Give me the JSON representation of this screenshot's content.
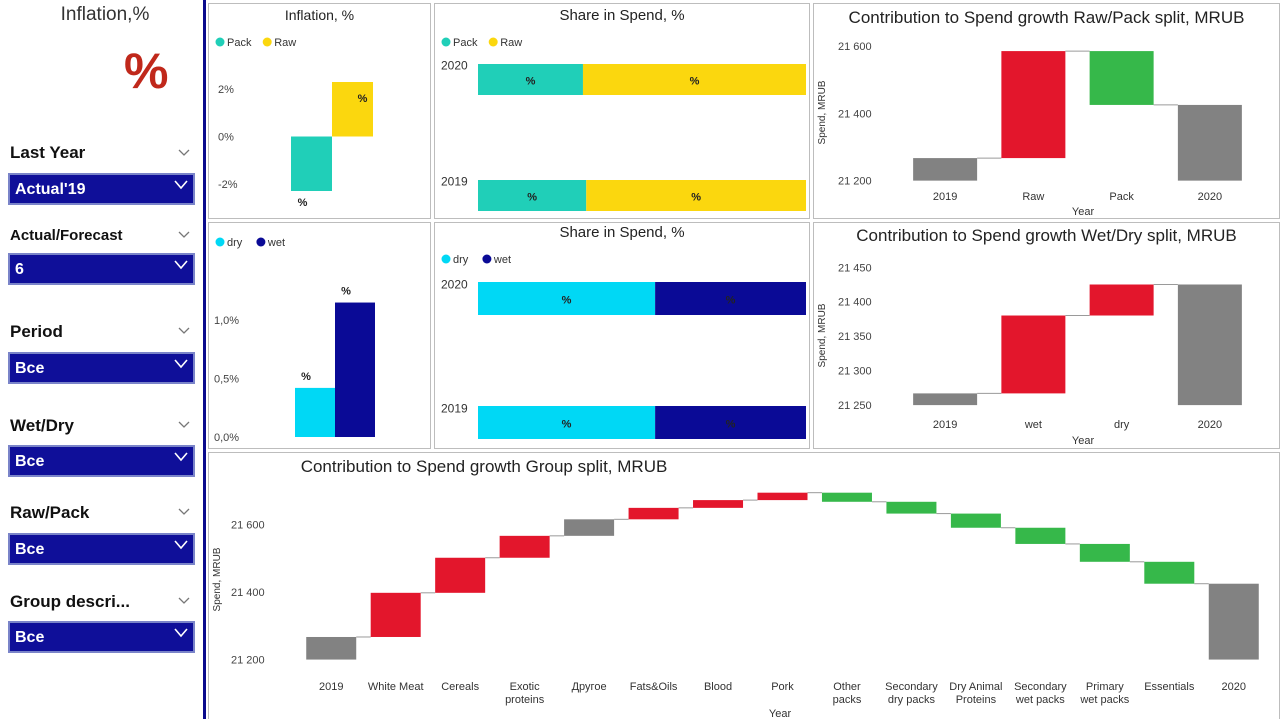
{
  "sidebar": {
    "title": "Inflation,%",
    "big_value": "%",
    "filters": [
      {
        "label": "Last Year",
        "value": "Actual'19"
      },
      {
        "label": "Actual/Forecast",
        "value": "6"
      },
      {
        "label": "Period",
        "value": "Все"
      },
      {
        "label": "Wet/Dry",
        "value": "Все"
      },
      {
        "label": "Raw/Pack",
        "value": "Все"
      },
      {
        "label": "Group descri...",
        "value": "Все"
      }
    ]
  },
  "colors": {
    "pack": "#20cfb8",
    "raw": "#fbd70e",
    "dry": "#00d8f5",
    "wet": "#0a0a96",
    "increase": "#e3162c",
    "decrease": "#36b84a",
    "total": "#828282",
    "accent": "#0f0f99"
  },
  "panels": {
    "inflation_rawpack": {
      "title": "Inflation, %"
    },
    "share_rawpack": {
      "title": "Share in Spend, %"
    },
    "contrib_rawpack": {
      "title": "Contribution to Spend growth Raw/Pack split, MRUB"
    },
    "inflation_wetdry": {
      "title": ""
    },
    "share_wetdry": {
      "title": "Share in Spend, %"
    },
    "contrib_wetdry": {
      "title": "Contribution to Spend growth Wet/Dry split, MRUB"
    },
    "contrib_group": {
      "title": "Contribution to Spend growth Group split, MRUB"
    }
  },
  "chart_data": [
    {
      "id": "inflation_rawpack",
      "type": "bar",
      "title": "Inflation, %",
      "legend": [
        "Pack",
        "Raw"
      ],
      "legend_position": "top-left",
      "ytick_labels": [
        "2%",
        "0%",
        "-2%"
      ],
      "ytick_values": [
        2,
        0,
        -2
      ],
      "ylim": [
        -2.3,
        2.3
      ],
      "series": [
        {
          "name": "Pack",
          "values": [
            -2.3
          ],
          "label": "%"
        },
        {
          "name": "Raw",
          "values": [
            2.3
          ],
          "label": "%"
        }
      ]
    },
    {
      "id": "share_rawpack",
      "type": "bar",
      "orientation": "horizontal-stacked-100",
      "title": "Share in Spend, %",
      "legend": [
        "Pack",
        "Raw"
      ],
      "legend_position": "top-left",
      "categories": [
        "2020",
        "2019"
      ],
      "series": [
        {
          "name": "Pack",
          "values": [
            32,
            33
          ],
          "labels": [
            "%",
            "%"
          ]
        },
        {
          "name": "Raw",
          "values": [
            68,
            67
          ],
          "labels": [
            "%",
            "%"
          ]
        }
      ]
    },
    {
      "id": "contrib_rawpack",
      "type": "bar",
      "subtype": "waterfall",
      "title": "Contribution to Spend growth Raw/Pack split, MRUB",
      "xlabel": "Year",
      "ylabel": "Spend, MRUB",
      "ytick_labels": [
        "21 600",
        "21 400",
        "21 200"
      ],
      "ytick_values": [
        21600,
        21400,
        21200
      ],
      "ylim": [
        21190,
        21615
      ],
      "categories": [
        "2019",
        "Raw",
        "Pack",
        "2020"
      ],
      "steps": [
        {
          "start": 21200,
          "end": 21267,
          "kind": "total"
        },
        {
          "start": 21267,
          "end": 21585,
          "kind": "increase"
        },
        {
          "start": 21585,
          "end": 21425,
          "kind": "decrease"
        },
        {
          "start": 21200,
          "end": 21425,
          "kind": "total"
        }
      ]
    },
    {
      "id": "inflation_wetdry",
      "type": "bar",
      "legend": [
        "dry",
        "wet"
      ],
      "legend_position": "top-left",
      "ytick_labels": [
        "1,0%",
        "0,5%",
        "0,0%"
      ],
      "ytick_values": [
        1.0,
        0.5,
        0.0
      ],
      "ylim": [
        0,
        1.3
      ],
      "series": [
        {
          "name": "dry",
          "values": [
            0.42
          ],
          "label": "%"
        },
        {
          "name": "wet",
          "values": [
            1.15
          ],
          "label": "%"
        }
      ]
    },
    {
      "id": "share_wetdry",
      "type": "bar",
      "orientation": "horizontal-stacked-100",
      "title": "Share in Spend, %",
      "legend": [
        "dry",
        "wet"
      ],
      "legend_position": "top-left",
      "categories": [
        "2020",
        "2019"
      ],
      "series": [
        {
          "name": "dry",
          "values": [
            54,
            54
          ],
          "labels": [
            "%",
            "%"
          ]
        },
        {
          "name": "wet",
          "values": [
            46,
            46
          ],
          "labels": [
            "%",
            "%"
          ]
        }
      ]
    },
    {
      "id": "contrib_wetdry",
      "type": "bar",
      "subtype": "waterfall",
      "title": "Contribution to Spend growth Wet/Dry split, MRUB",
      "xlabel": "Year",
      "ylabel": "Spend, MRUB",
      "ytick_labels": [
        "21 450",
        "21 400",
        "21 350",
        "21 300",
        "21 250"
      ],
      "ytick_values": [
        21450,
        21400,
        21350,
        21300,
        21250
      ],
      "ylim": [
        21240,
        21462
      ],
      "categories": [
        "2019",
        "wet",
        "dry",
        "2020"
      ],
      "steps": [
        {
          "start": 21250,
          "end": 21267,
          "kind": "total"
        },
        {
          "start": 21267,
          "end": 21380,
          "kind": "increase"
        },
        {
          "start": 21380,
          "end": 21425,
          "kind": "increase"
        },
        {
          "start": 21250,
          "end": 21425,
          "kind": "total"
        }
      ]
    },
    {
      "id": "contrib_group",
      "type": "bar",
      "subtype": "waterfall",
      "title": "Contribution to Spend growth Group split, MRUB",
      "xlabel": "Year",
      "ylabel": "Spend, MRUB",
      "ytick_labels": [
        "21 600",
        "21 400",
        "21 200"
      ],
      "ytick_values": [
        21600,
        21400,
        21200
      ],
      "ylim": [
        21175,
        21700
      ],
      "categories": [
        "2019",
        "White Meat",
        "Cereals",
        "Exotic proteins",
        "Другое",
        "Fats&Oils",
        "Blood",
        "Pork",
        "Other packs",
        "Secondary dry packs",
        "Dry Animal Proteins",
        "Secondary wet packs",
        "Primary wet packs",
        "Essentials",
        "2020"
      ],
      "steps": [
        {
          "start": 21200,
          "end": 21267,
          "kind": "total"
        },
        {
          "start": 21267,
          "end": 21398,
          "kind": "increase"
        },
        {
          "start": 21398,
          "end": 21502,
          "kind": "increase"
        },
        {
          "start": 21502,
          "end": 21567,
          "kind": "increase"
        },
        {
          "start": 21567,
          "end": 21616,
          "kind": "total"
        },
        {
          "start": 21616,
          "end": 21650,
          "kind": "increase"
        },
        {
          "start": 21650,
          "end": 21673,
          "kind": "increase"
        },
        {
          "start": 21673,
          "end": 21695,
          "kind": "increase"
        },
        {
          "start": 21695,
          "end": 21668,
          "kind": "decrease"
        },
        {
          "start": 21668,
          "end": 21633,
          "kind": "decrease"
        },
        {
          "start": 21633,
          "end": 21591,
          "kind": "decrease"
        },
        {
          "start": 21591,
          "end": 21543,
          "kind": "decrease"
        },
        {
          "start": 21543,
          "end": 21490,
          "kind": "decrease"
        },
        {
          "start": 21490,
          "end": 21425,
          "kind": "decrease"
        },
        {
          "start": 21200,
          "end": 21425,
          "kind": "total"
        }
      ]
    }
  ]
}
